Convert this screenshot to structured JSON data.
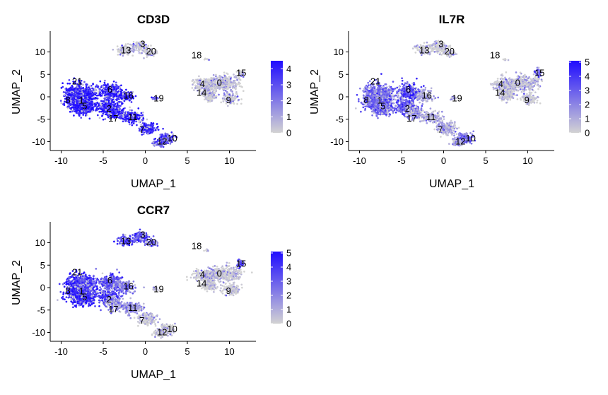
{
  "chart_data": [
    {
      "type": "scatter",
      "title": "CD3D",
      "xlabel": "UMAP_1",
      "ylabel": "UMAP_2",
      "xlim": [
        -11,
        13.5
      ],
      "ylim": [
        -13.5,
        15
      ],
      "xticks": [
        -10,
        -5,
        0,
        5,
        10
      ],
      "yticks": [
        -10,
        -5,
        0,
        5,
        10
      ],
      "grid": false,
      "color_scale": {
        "low": "#d3d3d3",
        "high": "#1f0cff",
        "min": 0,
        "max": 4.5,
        "ticks": [
          0,
          1,
          2,
          3,
          4
        ]
      },
      "cluster_expression": {
        "0": 0.1,
        "1": 4.2,
        "2": 4.3,
        "3": 0.1,
        "4": 0.1,
        "5": 4.3,
        "6": 4.0,
        "7": 4.0,
        "8": 4.3,
        "9": 0.1,
        "10": 3.2,
        "11": 4.0,
        "12": 3.2,
        "13": 0.1,
        "14": 0.1,
        "15": 0.2,
        "16": 3.8,
        "17": 4.1,
        "18": 0.1,
        "19": 3.0,
        "20": 0.1,
        "21": 4.0
      },
      "cluster_labels": [
        "0",
        "1",
        "2",
        "3",
        "4",
        "5",
        "6",
        "7",
        "8",
        "9",
        "10",
        "11",
        "12",
        "13",
        "14",
        "15",
        "16",
        "17",
        "18",
        "19",
        "20",
        "21"
      ]
    },
    {
      "type": "scatter",
      "title": "IL7R",
      "xlabel": "UMAP_1",
      "ylabel": "UMAP_2",
      "xlim": [
        -11,
        13.5
      ],
      "ylim": [
        -13.5,
        15
      ],
      "xticks": [
        -10,
        -5,
        0,
        5,
        10
      ],
      "yticks": [
        -10,
        -5,
        0,
        5,
        10
      ],
      "grid": false,
      "color_scale": {
        "low": "#d3d3d3",
        "high": "#1f0cff",
        "min": 0,
        "max": 5.1,
        "ticks": [
          0,
          1,
          2,
          3,
          4,
          5
        ]
      },
      "cluster_expression": {
        "0": 0.3,
        "1": 3.0,
        "2": 3.2,
        "3": 0.1,
        "4": 0.3,
        "5": 3.0,
        "6": 3.6,
        "7": 1.2,
        "8": 3.0,
        "9": 0.1,
        "10": 2.6,
        "11": 1.0,
        "12": 1.8,
        "13": 0.1,
        "14": 0.2,
        "15": 3.4,
        "16": 1.2,
        "17": 1.4,
        "18": 0.1,
        "19": 0.1,
        "20": 0.1,
        "21": 2.8
      },
      "cluster_labels": [
        "0",
        "1",
        "2",
        "3",
        "4",
        "5",
        "6",
        "7",
        "8",
        "9",
        "10",
        "11",
        "12",
        "13",
        "14",
        "15",
        "16",
        "17",
        "18",
        "19",
        "20",
        "21"
      ]
    },
    {
      "type": "scatter",
      "title": "CCR7",
      "xlabel": "UMAP_1",
      "ylabel": "UMAP_2",
      "xlim": [
        -11,
        13.5
      ],
      "ylim": [
        -13.5,
        15
      ],
      "xticks": [
        -10,
        -5,
        0,
        5,
        10
      ],
      "yticks": [
        -10,
        -5,
        0,
        5,
        10
      ],
      "grid": false,
      "color_scale": {
        "low": "#d3d3d3",
        "high": "#1f0cff",
        "min": 0,
        "max": 5.1,
        "ticks": [
          0,
          1,
          2,
          3,
          4,
          5
        ]
      },
      "cluster_expression": {
        "0": 0.1,
        "1": 4.3,
        "2": 4.0,
        "3": 3.6,
        "4": 0.1,
        "5": 4.3,
        "6": 3.2,
        "7": 0.2,
        "8": 4.4,
        "9": 0.1,
        "10": 0.2,
        "11": 1.5,
        "12": 0.2,
        "13": 3.6,
        "14": 0.1,
        "15": 3.4,
        "16": 2.6,
        "17": 2.0,
        "18": 0.1,
        "19": 1.0,
        "20": 2.6,
        "21": 3.6
      },
      "cluster_labels": [
        "0",
        "1",
        "2",
        "3",
        "4",
        "5",
        "6",
        "7",
        "8",
        "9",
        "10",
        "11",
        "12",
        "13",
        "14",
        "15",
        "16",
        "17",
        "18",
        "19",
        "20",
        "21"
      ]
    }
  ]
}
